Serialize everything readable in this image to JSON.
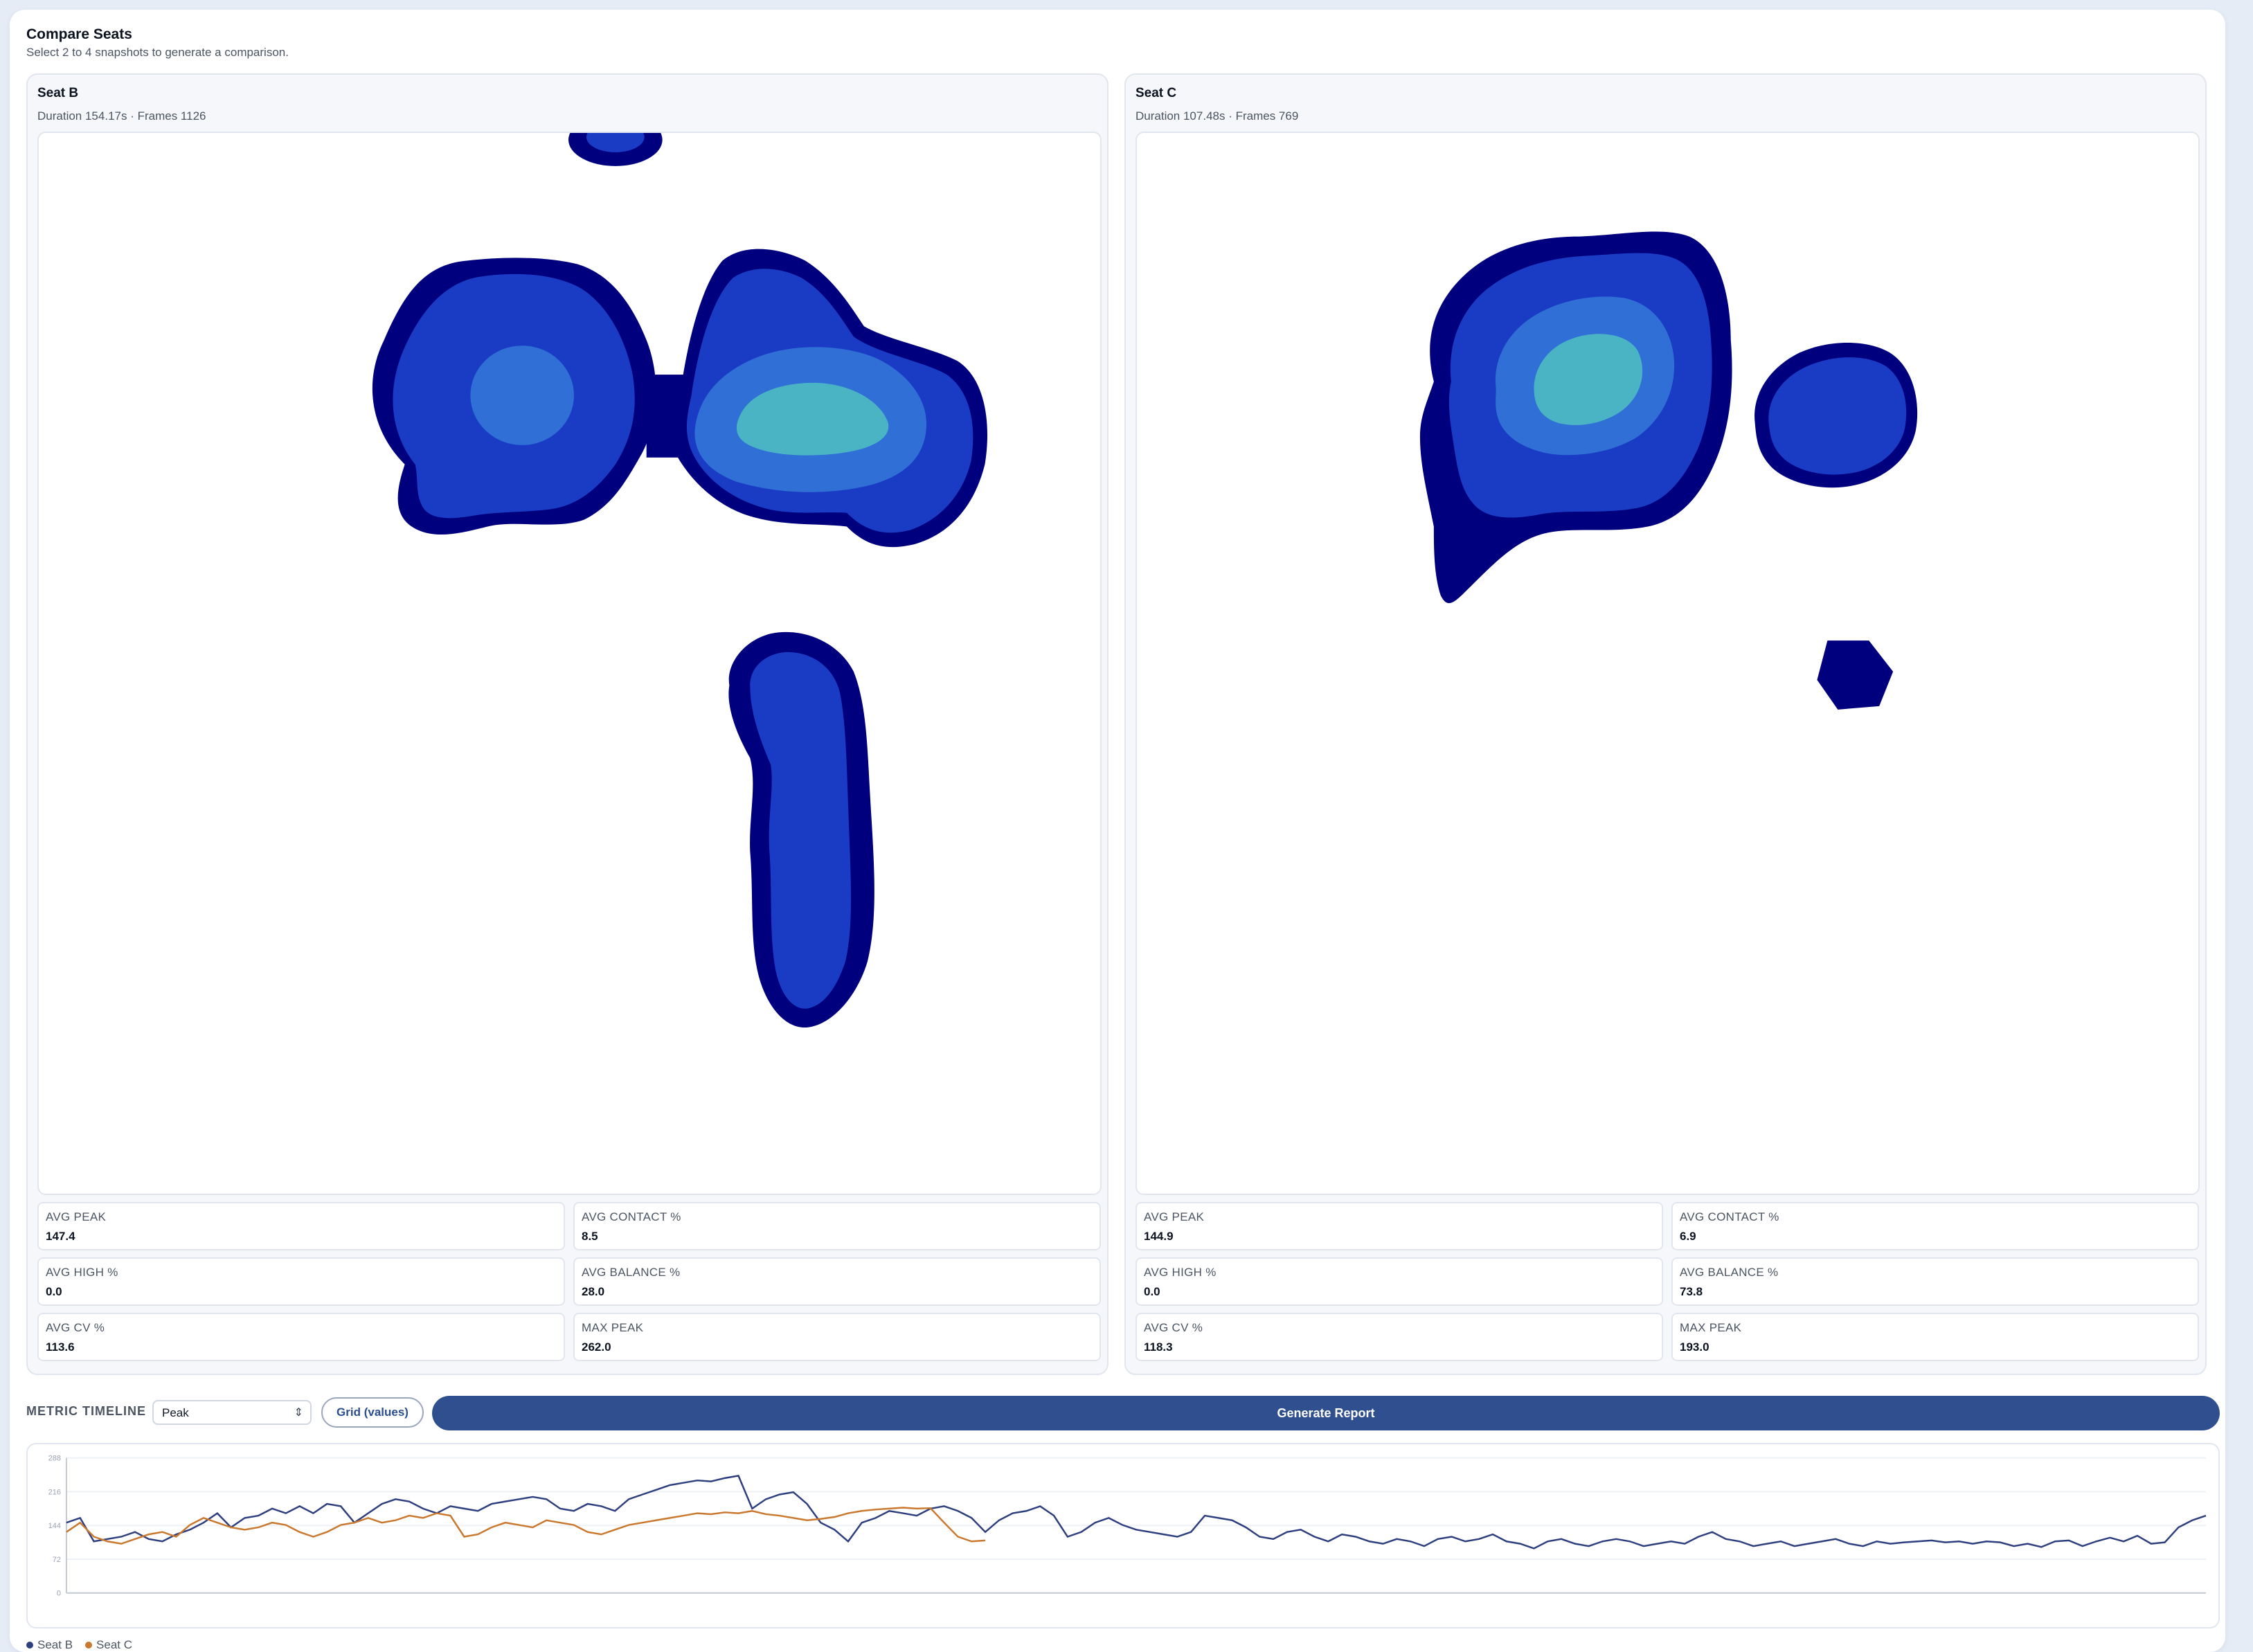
{
  "header": {
    "title": "Compare Seats",
    "subtitle": "Select 2 to 4 snapshots to generate a comparison."
  },
  "panels": [
    {
      "name": "Seat B",
      "meta": "Duration 154.17s · Frames 1126",
      "metrics": [
        {
          "label": "AVG PEAK",
          "value": "147.4"
        },
        {
          "label": "AVG CONTACT %",
          "value": "8.5"
        },
        {
          "label": "AVG HIGH %",
          "value": "0.0"
        },
        {
          "label": "AVG BALANCE %",
          "value": "28.0"
        },
        {
          "label": "AVG CV %",
          "value": "113.6"
        },
        {
          "label": "MAX PEAK",
          "value": "262.0"
        }
      ]
    },
    {
      "name": "Seat C",
      "meta": "Duration 107.48s · Frames 769",
      "metrics": [
        {
          "label": "AVG PEAK",
          "value": "144.9"
        },
        {
          "label": "AVG CONTACT %",
          "value": "6.9"
        },
        {
          "label": "AVG HIGH %",
          "value": "0.0"
        },
        {
          "label": "AVG BALANCE %",
          "value": "73.8"
        },
        {
          "label": "AVG CV %",
          "value": "118.3"
        },
        {
          "label": "MAX PEAK",
          "value": "193.0"
        }
      ]
    }
  ],
  "heatmap_colors": {
    "level1": "#00007f",
    "level2": "#1a3cc4",
    "level3": "#2f6fd6",
    "level4": "#4bb4c4"
  },
  "timeline": {
    "label": "METRIC TIMELINE",
    "metric_selected": "Peak",
    "grid_button": "Grid (values)",
    "generate_button": "Generate Report"
  },
  "chart_data": {
    "type": "line",
    "y_ticks": [
      "288",
      "216",
      "144",
      "72",
      "0"
    ],
    "ylim": [
      0,
      288
    ],
    "series": [
      {
        "name": "Seat B",
        "color": "#2e3f7f",
        "values": [
          150,
          160,
          110,
          115,
          120,
          130,
          115,
          110,
          125,
          135,
          150,
          170,
          140,
          160,
          165,
          180,
          170,
          185,
          170,
          190,
          185,
          150,
          170,
          190,
          200,
          195,
          180,
          170,
          185,
          180,
          175,
          190,
          195,
          200,
          205,
          200,
          180,
          175,
          190,
          185,
          175,
          200,
          210,
          220,
          230,
          235,
          240,
          238,
          245,
          250,
          180,
          200,
          210,
          215,
          190,
          150,
          135,
          110,
          150,
          160,
          175,
          170,
          165,
          180,
          185,
          175,
          160,
          130,
          155,
          170,
          175,
          185,
          165,
          120,
          130,
          150,
          160,
          145,
          135,
          130,
          125,
          120,
          130,
          165,
          160,
          155,
          140,
          120,
          115,
          130,
          135,
          120,
          110,
          125,
          120,
          110,
          105,
          115,
          110,
          100,
          115,
          120,
          110,
          115,
          125,
          110,
          105,
          95,
          110,
          115,
          105,
          100,
          110,
          115,
          110,
          100,
          105,
          110,
          105,
          120,
          130,
          115,
          110,
          100,
          105,
          110,
          100,
          105,
          110,
          115,
          105,
          100,
          110,
          105,
          108,
          110,
          112,
          108,
          110,
          105,
          110,
          108,
          100,
          105,
          98,
          110,
          112,
          100,
          110,
          118,
          110,
          122,
          105,
          108,
          140,
          155,
          165
        ]
      },
      {
        "name": "Seat C",
        "color": "#c9782e",
        "values": [
          130,
          150,
          120,
          110,
          105,
          115,
          125,
          130,
          120,
          145,
          160,
          150,
          140,
          135,
          140,
          150,
          145,
          130,
          120,
          130,
          145,
          150,
          160,
          150,
          155,
          165,
          160,
          170,
          165,
          120,
          125,
          140,
          150,
          145,
          140,
          155,
          150,
          145,
          130,
          125,
          135,
          145,
          150,
          155,
          160,
          165,
          170,
          168,
          172,
          170,
          175,
          168,
          165,
          160,
          155,
          158,
          162,
          170,
          175,
          178,
          180,
          182,
          180,
          181,
          150,
          120,
          110,
          112
        ]
      }
    ]
  },
  "legend": [
    "Seat B",
    "Seat C"
  ]
}
